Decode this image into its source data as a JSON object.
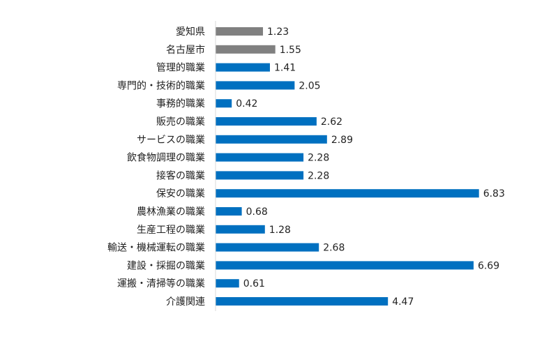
{
  "chart_data": {
    "type": "bar",
    "orientation": "horizontal",
    "categories": [
      "愛知県",
      "名古屋市",
      "管理的職業",
      "専門的・技術的職業",
      "事務的職業",
      "販売の職業",
      "サービスの職業",
      "飲食物調理の職業",
      "接客の職業",
      "保安の職業",
      "農林漁業の職業",
      "生産工程の職業",
      "輸送・機械運転の職業",
      "建設・採掘の職業",
      "運搬・清掃等の職業",
      "介護関連"
    ],
    "values": [
      1.23,
      1.55,
      1.41,
      2.05,
      0.42,
      2.62,
      2.89,
      2.28,
      2.28,
      6.83,
      0.68,
      1.28,
      2.68,
      6.69,
      0.61,
      4.47
    ],
    "value_labels": [
      "1.23",
      "1.55",
      "1.41",
      "2.05",
      "0.42",
      "2.62",
      "2.89",
      "2.28",
      "2.28",
      "6.83",
      "0.68",
      "1.28",
      "2.68",
      "6.69",
      "0.61",
      "4.47"
    ],
    "bar_colors": [
      "#808080",
      "#808080",
      "#0070c0",
      "#0070c0",
      "#0070c0",
      "#0070c0",
      "#0070c0",
      "#0070c0",
      "#0070c0",
      "#0070c0",
      "#0070c0",
      "#0070c0",
      "#0070c0",
      "#0070c0",
      "#0070c0",
      "#0070c0"
    ],
    "title": "",
    "xlabel": "",
    "ylabel": "",
    "xlim": [
      0,
      7
    ],
    "grid": false,
    "legend": "none",
    "axis_color": "#d9d9d9"
  }
}
